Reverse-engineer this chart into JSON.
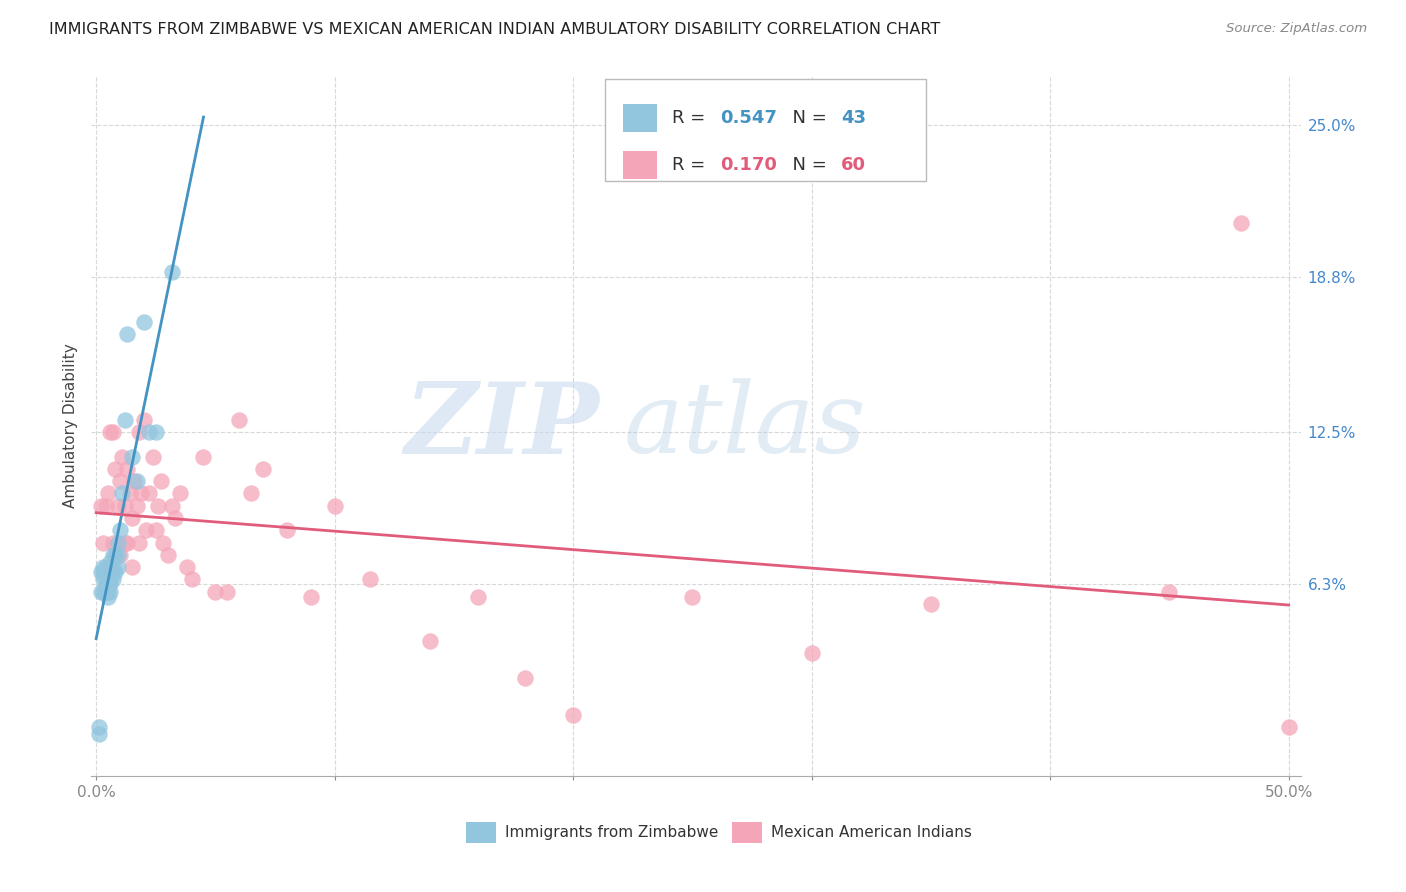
{
  "title": "IMMIGRANTS FROM ZIMBABWE VS MEXICAN AMERICAN INDIAN AMBULATORY DISABILITY CORRELATION CHART",
  "source": "Source: ZipAtlas.com",
  "ylabel": "Ambulatory Disability",
  "ytick_labels": [
    "6.3%",
    "12.5%",
    "18.8%",
    "25.0%"
  ],
  "ytick_values": [
    0.063,
    0.125,
    0.188,
    0.25
  ],
  "xlim": [
    -0.002,
    0.505
  ],
  "ylim": [
    -0.015,
    0.27
  ],
  "blue_R": "0.547",
  "blue_N": "43",
  "pink_R": "0.170",
  "pink_N": "60",
  "blue_color": "#92c5de",
  "pink_color": "#f4a6b8",
  "blue_line_color": "#4393c3",
  "pink_line_color": "#e05c7a",
  "legend_label_blue": "Immigrants from Zimbabwe",
  "legend_label_pink": "Mexican American Indians",
  "watermark_zip": "ZIP",
  "watermark_atlas": "atlas",
  "blue_x": [
    0.001,
    0.001,
    0.002,
    0.002,
    0.003,
    0.003,
    0.003,
    0.003,
    0.004,
    0.004,
    0.004,
    0.004,
    0.004,
    0.005,
    0.005,
    0.005,
    0.005,
    0.005,
    0.005,
    0.006,
    0.006,
    0.006,
    0.006,
    0.006,
    0.007,
    0.007,
    0.007,
    0.007,
    0.008,
    0.008,
    0.009,
    0.009,
    0.009,
    0.01,
    0.011,
    0.012,
    0.013,
    0.015,
    0.017,
    0.02,
    0.022,
    0.025,
    0.032
  ],
  "blue_y": [
    0.002,
    0.005,
    0.06,
    0.068,
    0.06,
    0.065,
    0.068,
    0.07,
    0.06,
    0.063,
    0.065,
    0.068,
    0.07,
    0.058,
    0.06,
    0.063,
    0.065,
    0.068,
    0.07,
    0.06,
    0.063,
    0.065,
    0.068,
    0.072,
    0.065,
    0.068,
    0.07,
    0.075,
    0.068,
    0.075,
    0.07,
    0.075,
    0.08,
    0.085,
    0.1,
    0.13,
    0.165,
    0.115,
    0.105,
    0.17,
    0.125,
    0.125,
    0.19
  ],
  "pink_x": [
    0.002,
    0.003,
    0.004,
    0.005,
    0.006,
    0.006,
    0.007,
    0.007,
    0.008,
    0.008,
    0.009,
    0.01,
    0.01,
    0.011,
    0.012,
    0.012,
    0.013,
    0.013,
    0.014,
    0.015,
    0.015,
    0.016,
    0.017,
    0.018,
    0.018,
    0.019,
    0.02,
    0.021,
    0.022,
    0.024,
    0.025,
    0.026,
    0.027,
    0.028,
    0.03,
    0.032,
    0.033,
    0.035,
    0.038,
    0.04,
    0.045,
    0.05,
    0.055,
    0.06,
    0.065,
    0.07,
    0.08,
    0.09,
    0.1,
    0.115,
    0.14,
    0.16,
    0.18,
    0.2,
    0.25,
    0.3,
    0.35,
    0.45,
    0.48,
    0.5
  ],
  "pink_y": [
    0.095,
    0.08,
    0.095,
    0.1,
    0.125,
    0.07,
    0.125,
    0.08,
    0.11,
    0.075,
    0.095,
    0.105,
    0.075,
    0.115,
    0.08,
    0.095,
    0.11,
    0.08,
    0.1,
    0.09,
    0.07,
    0.105,
    0.095,
    0.125,
    0.08,
    0.1,
    0.13,
    0.085,
    0.1,
    0.115,
    0.085,
    0.095,
    0.105,
    0.08,
    0.075,
    0.095,
    0.09,
    0.1,
    0.07,
    0.065,
    0.115,
    0.06,
    0.06,
    0.13,
    0.1,
    0.11,
    0.085,
    0.058,
    0.095,
    0.065,
    0.04,
    0.058,
    0.025,
    0.01,
    0.058,
    0.035,
    0.055,
    0.06,
    0.21,
    0.005
  ],
  "grid_color": "#d8d8d8",
  "axis_color": "#cccccc"
}
